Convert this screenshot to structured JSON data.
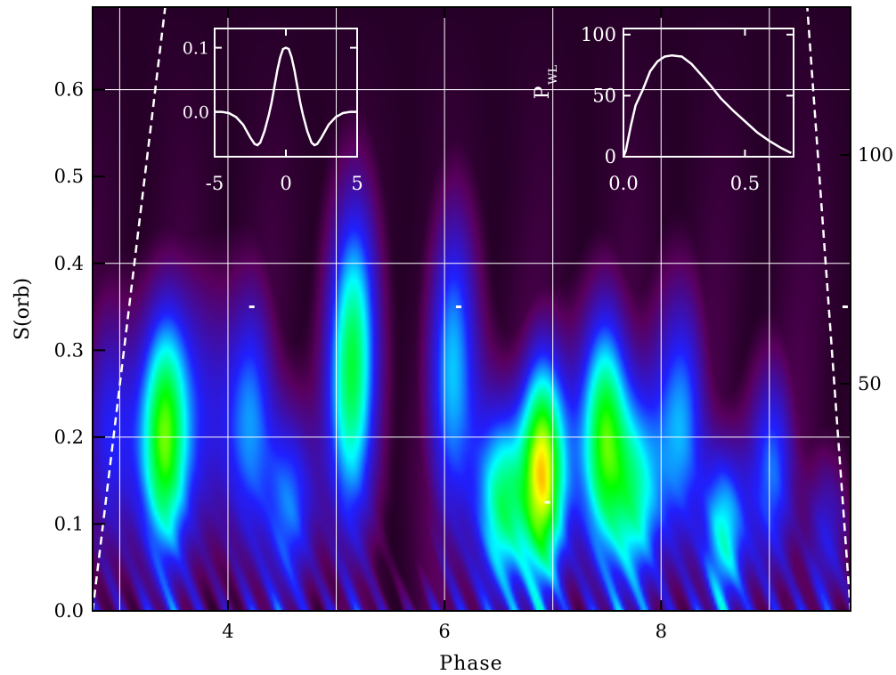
{
  "chart_data": {
    "type": "heatmap",
    "xlabel": "Phase",
    "ylabel": "S(orb)",
    "xlim": [
      2.75,
      9.75
    ],
    "ylim": [
      0.0,
      0.695
    ],
    "xticks": [
      "4",
      "6",
      "8"
    ],
    "yticks": [
      "0.0",
      "0.1",
      "0.2",
      "0.3",
      "0.4",
      "0.5",
      "0.6"
    ],
    "right_ticks": [
      "100",
      "50"
    ],
    "grid": true,
    "colormap": [
      "#000000",
      "#5a005e",
      "#2020ff",
      "#00ffff",
      "#00ff00",
      "#ffff00",
      "#ff0000"
    ],
    "blobs": [
      {
        "x": 2.93,
        "y": 0.2,
        "amp": 0.45
      },
      {
        "x": 3.4,
        "y": 0.2,
        "amp": 0.78
      },
      {
        "x": 3.8,
        "y": 0.22,
        "amp": 0.35
      },
      {
        "x": 4.2,
        "y": 0.22,
        "amp": 0.45
      },
      {
        "x": 4.6,
        "y": 0.12,
        "amp": 0.52
      },
      {
        "x": 5.15,
        "y": 0.28,
        "amp": 0.72
      },
      {
        "x": 6.1,
        "y": 0.27,
        "amp": 0.55
      },
      {
        "x": 6.5,
        "y": 0.12,
        "amp": 0.7
      },
      {
        "x": 6.93,
        "y": 0.16,
        "amp": 1.0
      },
      {
        "x": 7.45,
        "y": 0.2,
        "amp": 0.78
      },
      {
        "x": 7.8,
        "y": 0.13,
        "amp": 0.55
      },
      {
        "x": 8.15,
        "y": 0.22,
        "amp": 0.56
      },
      {
        "x": 8.6,
        "y": 0.09,
        "amp": 0.58
      },
      {
        "x": 9.0,
        "y": 0.16,
        "amp": 0.5
      },
      {
        "x": 9.55,
        "y": 0.09,
        "amp": 0.38
      }
    ],
    "coi_left": [
      [
        2.75,
        0.0
      ],
      [
        3.42,
        0.695
      ]
    ],
    "coi_right": [
      [
        9.75,
        0.0
      ],
      [
        9.35,
        0.695
      ]
    ],
    "markers": [
      {
        "x": 4.22,
        "y": 0.35
      },
      {
        "x": 6.13,
        "y": 0.35
      },
      {
        "x": 9.7,
        "y": 0.35
      },
      {
        "x": 6.95,
        "y": 0.125
      }
    ],
    "insets": [
      {
        "name": "wavelet",
        "xlim": [
          -5,
          5
        ],
        "ylim": [
          -0.07,
          0.13
        ],
        "xticks": [
          "-5",
          "0",
          "5"
        ],
        "yticks": [
          "0.1",
          "0.0"
        ],
        "x": [
          -5,
          -4.5,
          -4,
          -3.5,
          -3,
          -2.5,
          -2.2,
          -2,
          -1.8,
          -1.5,
          -1.2,
          -1,
          -0.8,
          -0.6,
          -0.4,
          -0.2,
          0,
          0.2,
          0.4,
          0.6,
          0.8,
          1,
          1.2,
          1.5,
          1.8,
          2,
          2.2,
          2.5,
          3,
          3.5,
          4,
          4.5,
          5
        ],
        "y": [
          0,
          0,
          -0.002,
          -0.008,
          -0.02,
          -0.04,
          -0.05,
          -0.052,
          -0.048,
          -0.03,
          -0.005,
          0.015,
          0.04,
          0.065,
          0.085,
          0.098,
          0.1,
          0.098,
          0.085,
          0.065,
          0.04,
          0.015,
          -0.005,
          -0.03,
          -0.048,
          -0.052,
          -0.05,
          -0.04,
          -0.02,
          -0.008,
          -0.002,
          0,
          0
        ]
      },
      {
        "name": "power",
        "ylabel": "P",
        "ylabel_sub": "WL",
        "xlim": [
          0,
          0.7
        ],
        "ylim": [
          0,
          105
        ],
        "xticks": [
          "0.0",
          "0.5"
        ],
        "yticks": [
          "100",
          "50",
          "0"
        ],
        "x": [
          0,
          0.01,
          0.03,
          0.05,
          0.08,
          0.11,
          0.14,
          0.17,
          0.2,
          0.24,
          0.28,
          0.32,
          0.36,
          0.4,
          0.45,
          0.5,
          0.55,
          0.6,
          0.65,
          0.69
        ],
        "y": [
          0,
          5,
          25,
          42,
          55,
          70,
          78,
          82,
          83,
          82,
          76,
          67,
          58,
          48,
          38,
          29,
          20,
          13,
          7,
          3
        ]
      }
    ]
  }
}
